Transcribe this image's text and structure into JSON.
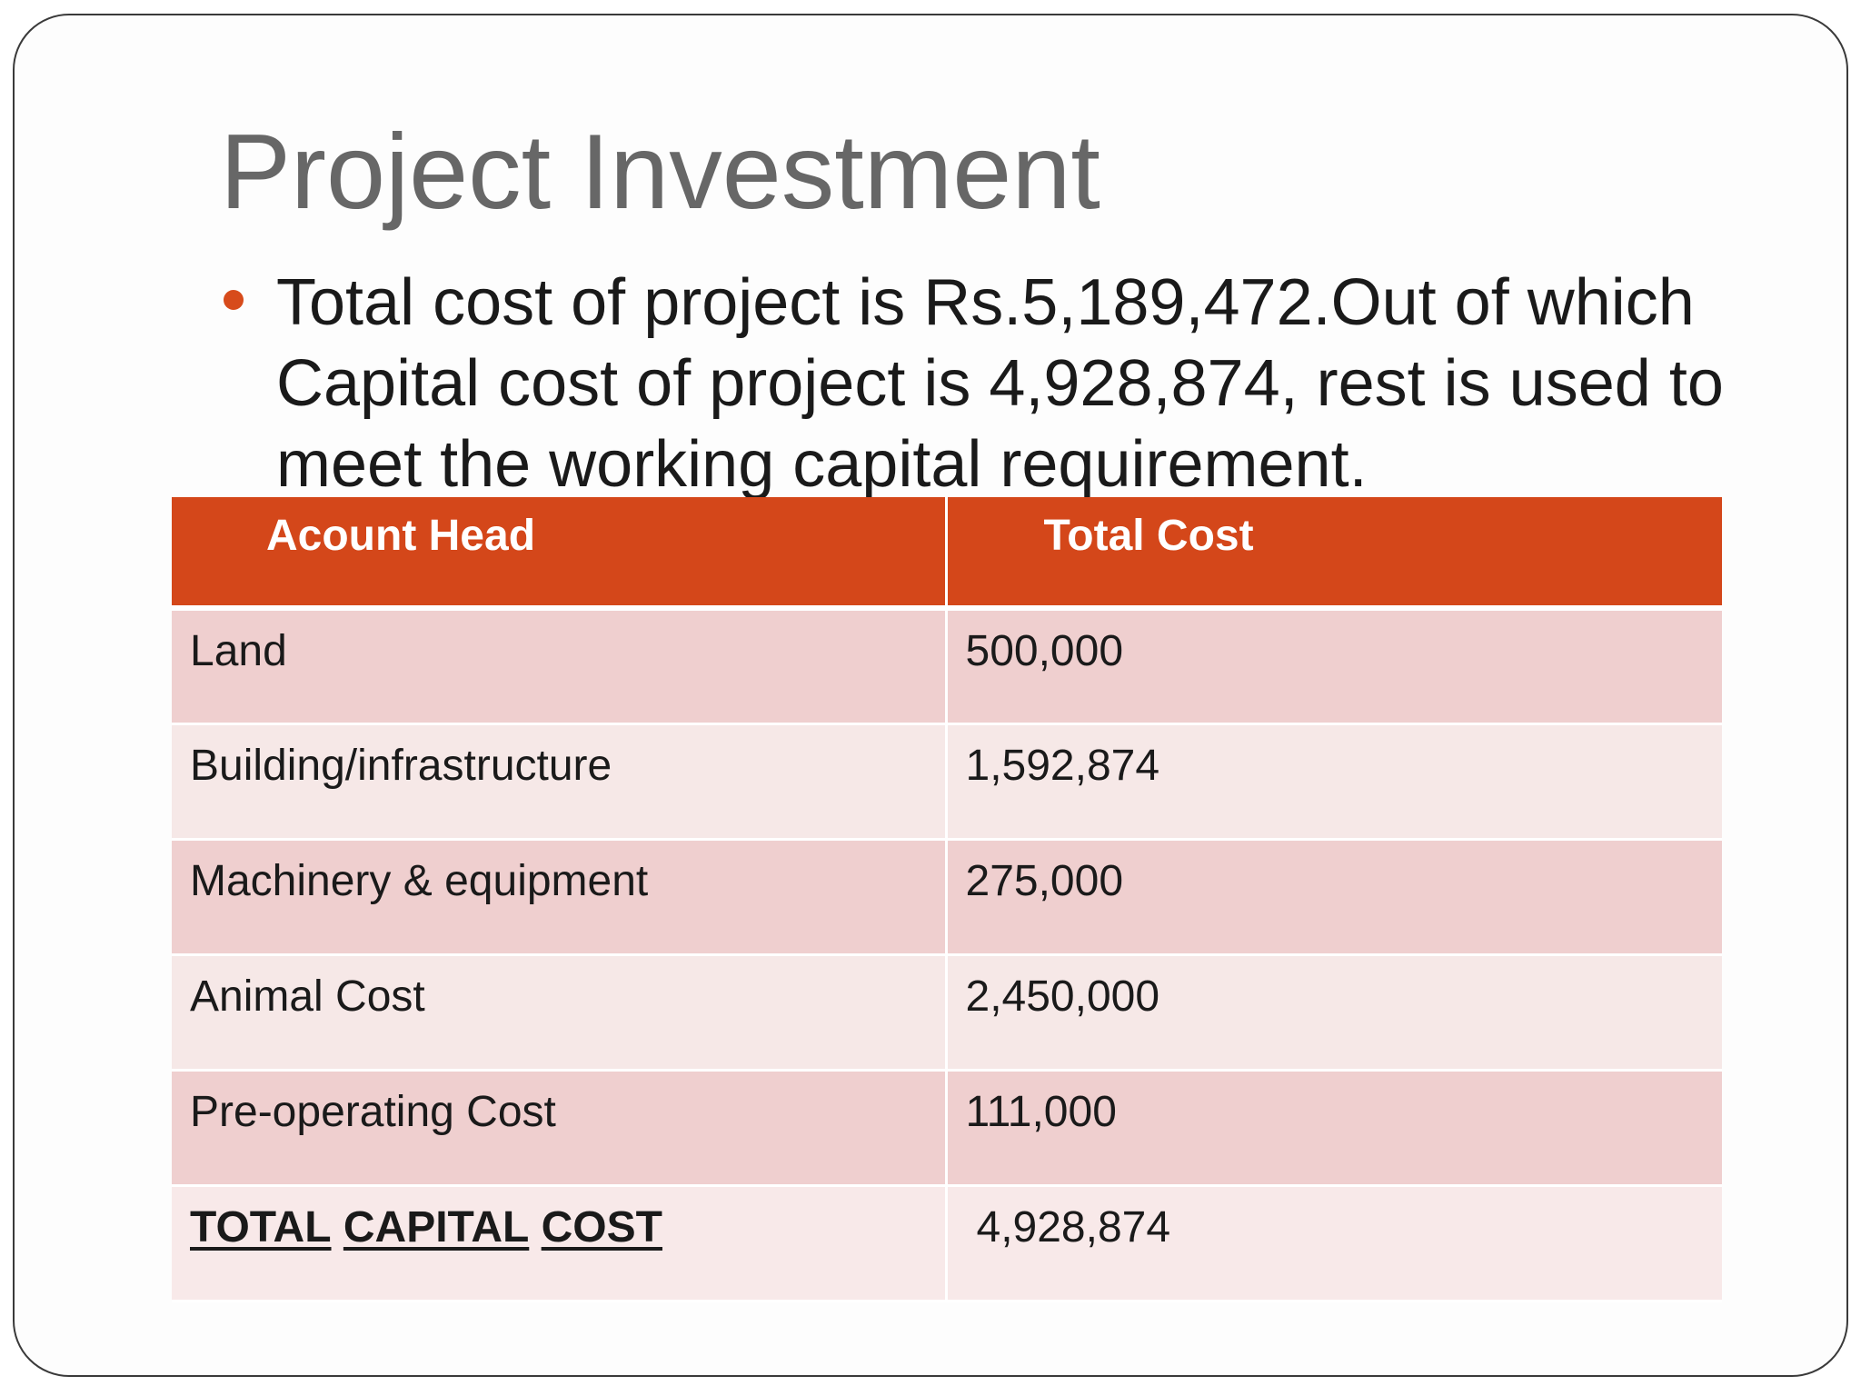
{
  "slide": {
    "title": "Project Investment",
    "bullet": "Total cost of project is Rs.5,189,472.Out of which Capital cost of project is 4,928,874, rest is used to meet the working capital requirement."
  },
  "table": {
    "headers": [
      "Acount Head",
      "Total Cost"
    ],
    "rows": [
      {
        "head": "Land",
        "cost": "500,000"
      },
      {
        "head": "Building/infrastructure",
        "cost": "1,592,874"
      },
      {
        "head": "Machinery & equipment",
        "cost": "275,000"
      },
      {
        "head": "Animal Cost",
        "cost": "2,450,000"
      },
      {
        "head": "Pre-operating Cost",
        "cost": "111,000"
      }
    ],
    "total": {
      "words": [
        "TOTAL",
        "CAPITAL",
        "COST"
      ],
      "cost": "4,928,874"
    }
  },
  "colors": {
    "accent": "#d4471a",
    "row_odd": "#efcfcf",
    "row_even": "#f6e8e7",
    "title": "#676767"
  }
}
